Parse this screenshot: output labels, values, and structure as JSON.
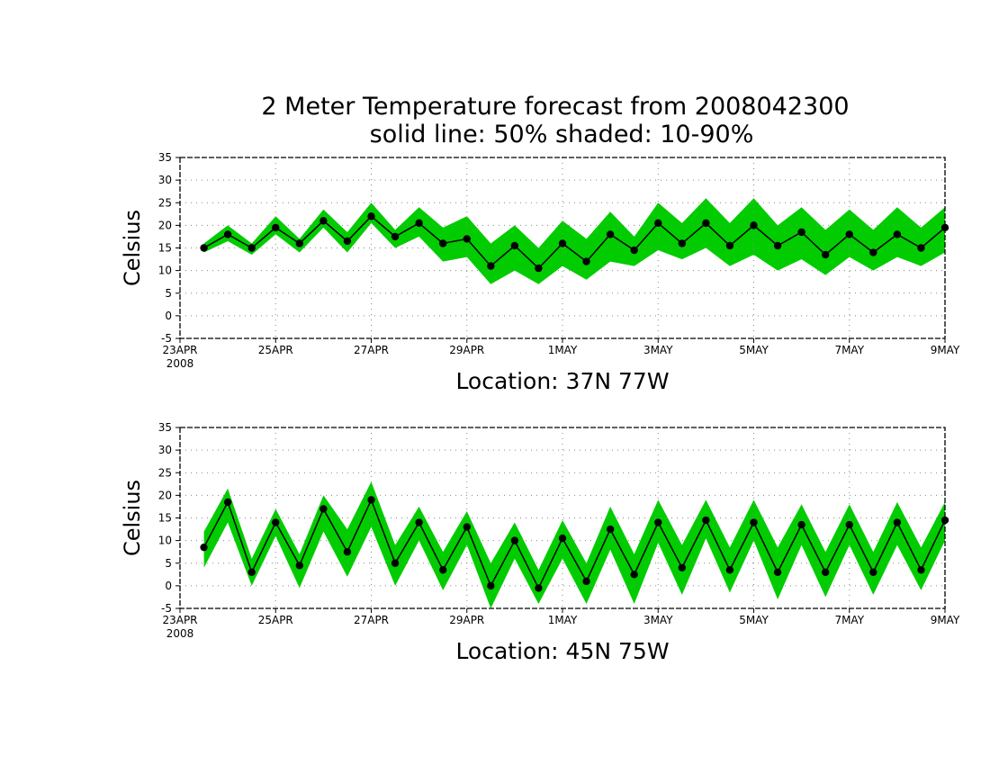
{
  "title": {
    "line1": "2 Meter Temperature forecast from 2008042300",
    "line2": "solid line: 50% shaded: 10-90%"
  },
  "colors": {
    "band": "#00cc00",
    "line": "#000000",
    "grid": "#888888"
  },
  "x_tick_labels": [
    "23APR",
    "25APR",
    "27APR",
    "29APR",
    "1MAY",
    "3MAY",
    "5MAY",
    "7MAY",
    "9MAY"
  ],
  "x_tick_days": [
    0,
    2,
    4,
    6,
    8,
    10,
    12,
    14,
    16
  ],
  "x_year_label": "2008",
  "chart_data": [
    {
      "type": "line",
      "title": "Location: 37N 77W",
      "ylabel": "Celsius",
      "ylim": [
        -5,
        35
      ],
      "yticks": [
        -5,
        0,
        5,
        10,
        15,
        20,
        25,
        30,
        35
      ],
      "grid": true,
      "x_unit": "days from 23APR 2008 00Z",
      "x": [
        0.5,
        1,
        1.5,
        2,
        2.5,
        3,
        3.5,
        4,
        4.5,
        5,
        5.5,
        6,
        6.5,
        7,
        7.5,
        8,
        8.5,
        9,
        9.5,
        10,
        10.5,
        11,
        11.5,
        12,
        12.5,
        13,
        13.5,
        14,
        14.5,
        15,
        15.5,
        16
      ],
      "series": [
        {
          "name": "50%",
          "values": [
            15,
            18,
            15,
            19.5,
            16,
            21,
            16.5,
            22,
            17.5,
            20.5,
            16,
            17,
            11,
            15.5,
            10.5,
            16,
            12,
            18,
            14.5,
            20.5,
            16,
            20.5,
            15.5,
            20,
            15.5,
            18.5,
            13.5,
            18,
            14,
            18,
            15,
            19.5
          ]
        },
        {
          "name": "10%",
          "values": [
            14,
            16.5,
            13.5,
            18,
            14,
            19.5,
            14,
            20.5,
            15,
            17.5,
            12,
            13,
            7,
            10,
            7,
            11,
            8,
            12,
            11,
            14.5,
            12.5,
            15,
            11,
            13.5,
            10,
            12.5,
            9,
            13,
            10,
            13,
            11,
            14
          ]
        },
        {
          "name": "90%",
          "values": [
            16,
            20,
            16,
            22,
            17,
            23.5,
            18.5,
            25,
            19,
            24,
            19.5,
            22,
            16,
            20,
            15,
            21,
            17,
            23,
            17.5,
            25,
            20.5,
            26,
            20.5,
            26,
            20,
            24,
            19,
            23.5,
            19,
            24,
            19.5,
            24
          ]
        }
      ]
    },
    {
      "type": "line",
      "title": "Location: 45N 75W",
      "ylabel": "Celsius",
      "ylim": [
        -5,
        35
      ],
      "yticks": [
        -5,
        0,
        5,
        10,
        15,
        20,
        25,
        30,
        35
      ],
      "grid": true,
      "x_unit": "days from 23APR 2008 00Z",
      "x": [
        0.5,
        1,
        1.5,
        2,
        2.5,
        3,
        3.5,
        4,
        4.5,
        5,
        5.5,
        6,
        6.5,
        7,
        7.5,
        8,
        8.5,
        9,
        9.5,
        10,
        10.5,
        11,
        11.5,
        12,
        12.5,
        13,
        13.5,
        14,
        14.5,
        15,
        15.5,
        16
      ],
      "series": [
        {
          "name": "50%",
          "values": [
            8.5,
            18.5,
            3,
            14,
            4.5,
            17,
            7.5,
            19,
            5,
            14,
            3.5,
            13,
            0,
            10,
            -0.5,
            10.5,
            1,
            12.5,
            2.5,
            14,
            4,
            14.5,
            3.5,
            14,
            3,
            13.5,
            3,
            13.5,
            3,
            14,
            3.5,
            14.5
          ]
        },
        {
          "name": "10%",
          "values": [
            4,
            14,
            0,
            11,
            -0.5,
            12,
            2,
            13,
            0,
            10,
            -1,
            9,
            -5,
            6,
            -4,
            6,
            -4,
            8,
            -4,
            9.5,
            -2,
            10.5,
            -1.5,
            10,
            -3,
            9,
            -2.5,
            9,
            -2,
            9,
            -1,
            10
          ]
        },
        {
          "name": "90%",
          "values": [
            12,
            21.5,
            6,
            17,
            7,
            20,
            12.5,
            23,
            9,
            17.5,
            7.5,
            16.5,
            5,
            14,
            3.5,
            14.5,
            5,
            17.5,
            7,
            19,
            9,
            19,
            8.5,
            19,
            8.5,
            18,
            7.5,
            18,
            7.5,
            18.5,
            8.5,
            18.5
          ]
        }
      ]
    }
  ]
}
